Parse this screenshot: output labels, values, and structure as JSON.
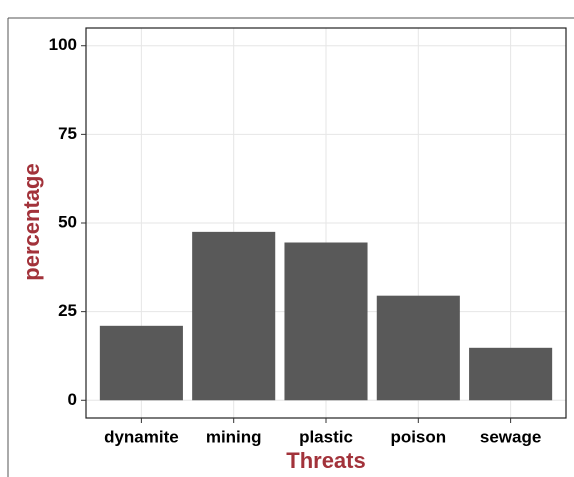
{
  "chart_data": {
    "type": "bar",
    "x_label": "Threats",
    "y_label": "percentage",
    "categories": [
      "dynamite",
      "mining",
      "plastic",
      "poison",
      "sewage"
    ],
    "values": [
      21,
      47.5,
      44.5,
      29.5,
      14.8
    ],
    "color": "#595959",
    "label_color": "#a2323a",
    "ylim": [
      -5,
      105
    ],
    "yticks": [
      0,
      25,
      50,
      75,
      100
    ],
    "grid": true
  }
}
